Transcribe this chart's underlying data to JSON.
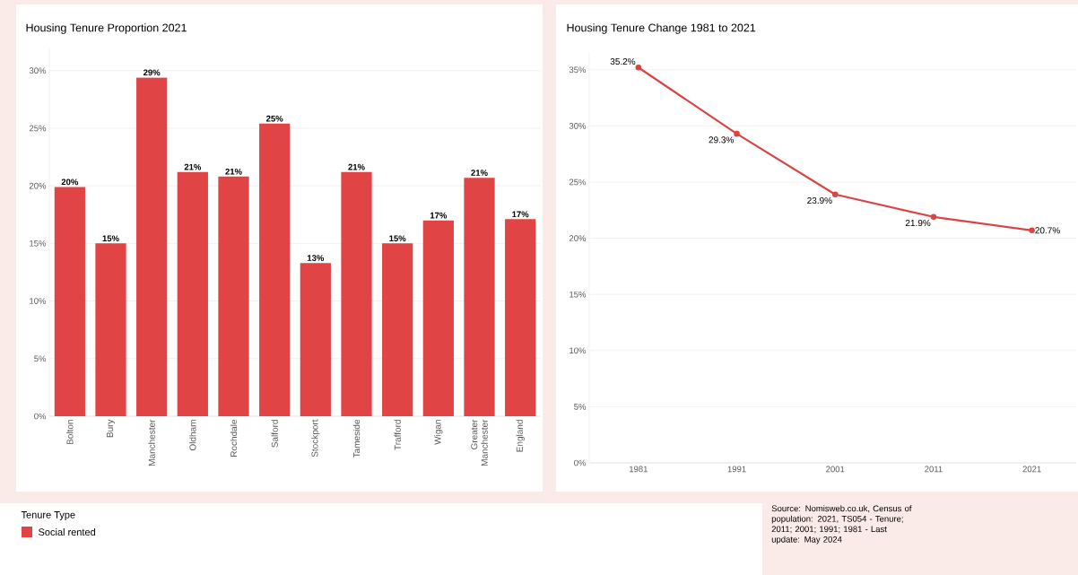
{
  "chart_data": [
    {
      "type": "bar",
      "title": "Housing Tenure Proportion 2021",
      "categories": [
        "Bolton",
        "Bury",
        "Manchester",
        "Oldham",
        "Rochdale",
        "Salford",
        "Stockport",
        "Tameside",
        "Trafford",
        "Wigan",
        "Greater Manchester",
        "England"
      ],
      "series": [
        {
          "name": "Social rented",
          "color": "#e04444",
          "values": [
            19.9,
            15.0,
            29.4,
            21.2,
            20.8,
            25.4,
            13.3,
            21.2,
            15.0,
            17.0,
            20.7,
            17.1
          ],
          "value_labels": [
            "20%",
            "15%",
            "29%",
            "21%",
            "21%",
            "25%",
            "13%",
            "21%",
            "15%",
            "17%",
            "21%",
            "17%"
          ]
        }
      ],
      "ylim": [
        0,
        32
      ],
      "yticks": [
        {
          "value": 0,
          "label": "0%"
        },
        {
          "value": 5,
          "label": "5%"
        },
        {
          "value": 10,
          "label": "10%"
        },
        {
          "value": 15,
          "label": "15%"
        },
        {
          "value": 20,
          "label": "20%"
        },
        {
          "value": 25,
          "label": "25%"
        },
        {
          "value": 30,
          "label": "30%"
        }
      ],
      "grid": "y",
      "legend": "bottom",
      "legend_title": "Tenure Type"
    },
    {
      "type": "line",
      "title": "Housing Tenure Change 1981 to 2021",
      "x": [
        1981,
        1991,
        2001,
        2011,
        2021
      ],
      "values": [
        35.2,
        29.3,
        23.9,
        21.9,
        20.7
      ],
      "color": "#d94545",
      "value_labels": [
        "35.2%",
        "29.3%",
        "23.9%",
        "21.9%",
        "20.7%"
      ],
      "marker": "circle",
      "line_style": "solid",
      "xlim": [
        1976,
        2025.5
      ],
      "xticks": [
        1981,
        1991,
        2001,
        2011,
        2021
      ],
      "ylim": [
        0,
        36.5
      ],
      "yticks": [
        {
          "value": 0,
          "label": "0%"
        },
        {
          "value": 5,
          "label": "5%"
        },
        {
          "value": 10,
          "label": "10%"
        },
        {
          "value": 15,
          "label": "15%"
        },
        {
          "value": 20,
          "label": "20%"
        },
        {
          "value": 25,
          "label": "25%"
        },
        {
          "value": 30,
          "label": "30%"
        },
        {
          "value": 35,
          "label": "35%"
        }
      ],
      "grid": "y",
      "annotations": [
        "Source: Nomisweb.co.uk, Census of population: 2021, TS054 - Tenure; 2011; 2001; 1991; 1981 - Last update: May 2024"
      ]
    }
  ]
}
